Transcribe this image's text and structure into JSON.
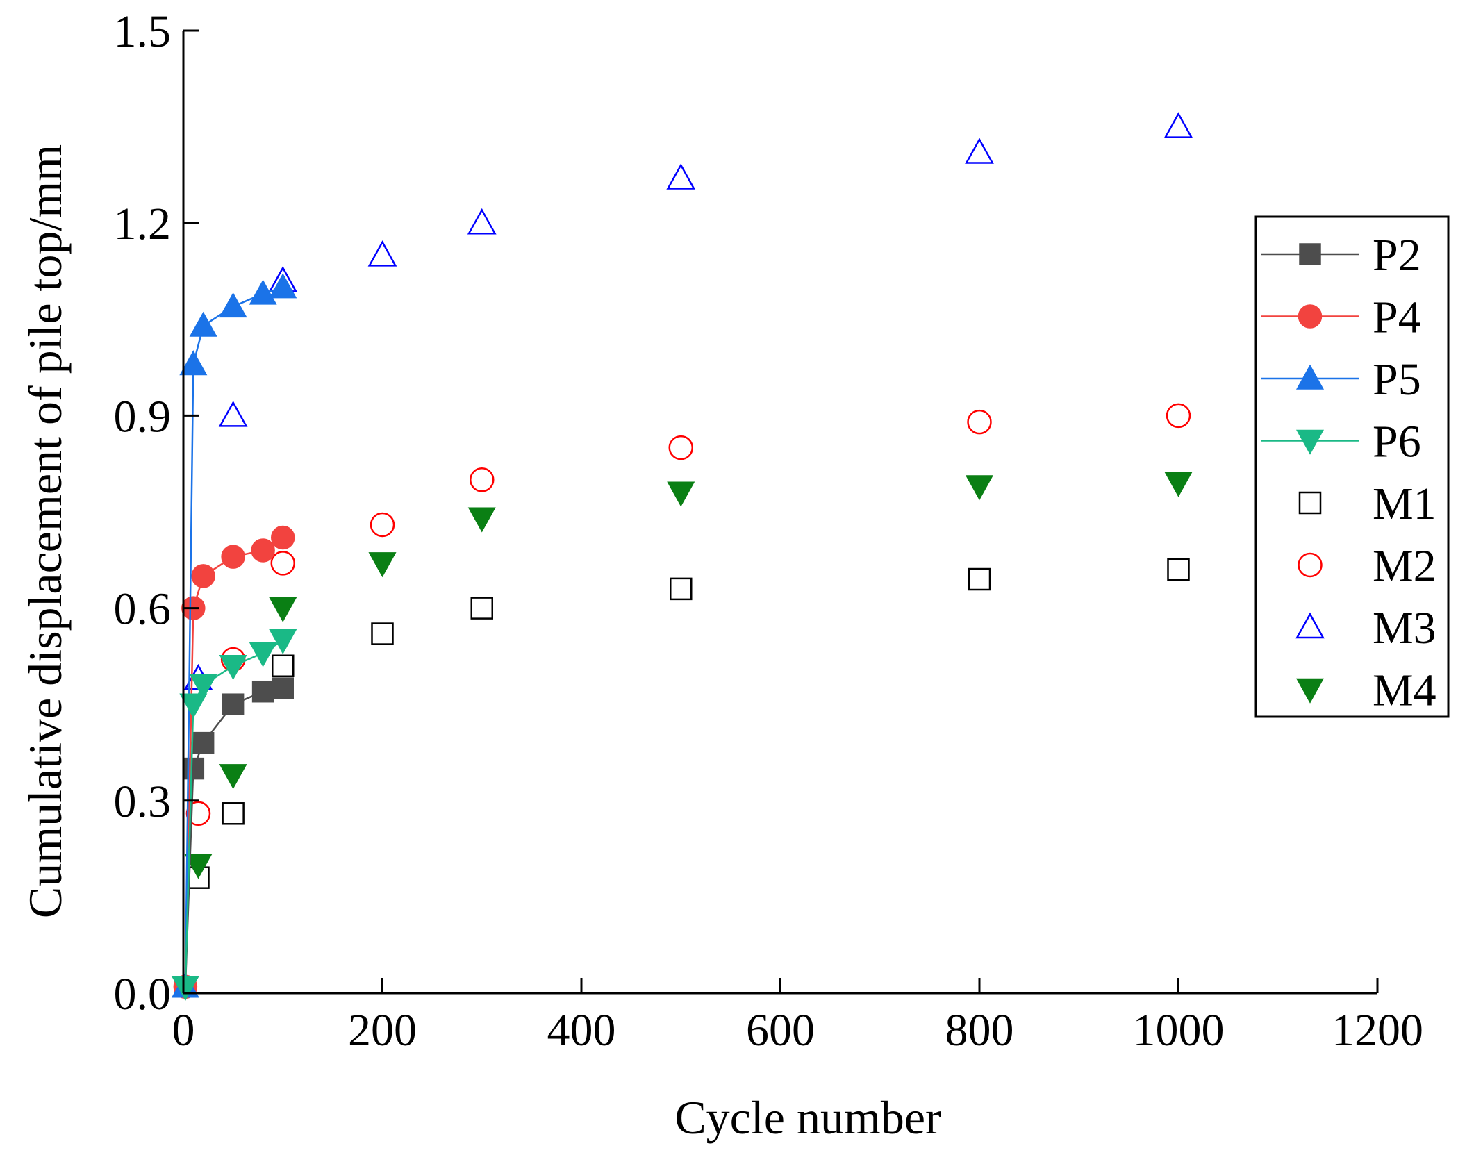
{
  "chart_data": {
    "type": "scatter",
    "title": "",
    "xlabel": "Cycle number",
    "ylabel": "Cumulative displacement of pile top/mm",
    "xlim": [
      0,
      1200
    ],
    "ylim": [
      0.0,
      1.5
    ],
    "xticks": [
      0,
      200,
      400,
      600,
      800,
      1000,
      1200
    ],
    "yticks": [
      0.0,
      0.3,
      0.6,
      0.9,
      1.2,
      1.5
    ],
    "xtick_labels": [
      "0",
      "200",
      "400",
      "600",
      "800",
      "1000",
      "1200"
    ],
    "ytick_labels": [
      "0.0",
      "0.3",
      "0.6",
      "0.9",
      "1.2",
      "1.5"
    ],
    "grid": false,
    "legend_position": "right",
    "series": [
      {
        "name": "P2",
        "marker": "square",
        "filled": true,
        "line": true,
        "color": "#4d4d4d",
        "line_color": "#4d4d4d",
        "x": [
          2,
          10,
          20,
          50,
          80,
          100
        ],
        "y": [
          0.01,
          0.35,
          0.39,
          0.45,
          0.47,
          0.475
        ]
      },
      {
        "name": "P4",
        "marker": "circle",
        "filled": true,
        "line": true,
        "color": "#f2433f",
        "line_color": "#f2433f",
        "x": [
          2,
          10,
          20,
          50,
          80,
          100
        ],
        "y": [
          0.01,
          0.6,
          0.65,
          0.68,
          0.69,
          0.71
        ]
      },
      {
        "name": "P5",
        "marker": "triangle-up",
        "filled": true,
        "line": true,
        "color": "#1b73e8",
        "line_color": "#1b73e8",
        "x": [
          2,
          10,
          20,
          50,
          80,
          100
        ],
        "y": [
          0.01,
          0.98,
          1.04,
          1.07,
          1.09,
          1.1
        ]
      },
      {
        "name": "P6",
        "marker": "triangle-down",
        "filled": true,
        "line": true,
        "color": "#1ab986",
        "line_color": "#1ab986",
        "x": [
          2,
          10,
          20,
          50,
          80,
          100
        ],
        "y": [
          0.01,
          0.45,
          0.48,
          0.51,
          0.53,
          0.55
        ]
      },
      {
        "name": "M1",
        "marker": "square",
        "filled": false,
        "line": false,
        "color": "#000000",
        "x": [
          15,
          50,
          100,
          200,
          300,
          500,
          800,
          1000
        ],
        "y": [
          0.18,
          0.28,
          0.51,
          0.56,
          0.6,
          0.63,
          0.645,
          0.66
        ]
      },
      {
        "name": "M2",
        "marker": "circle",
        "filled": false,
        "line": false,
        "color": "#ff0000",
        "x": [
          15,
          50,
          100,
          200,
          300,
          500,
          800,
          1000
        ],
        "y": [
          0.28,
          0.52,
          0.67,
          0.73,
          0.8,
          0.85,
          0.89,
          0.9
        ]
      },
      {
        "name": "M3",
        "marker": "triangle-up",
        "filled": false,
        "line": false,
        "color": "#0000ff",
        "x": [
          15,
          50,
          100,
          200,
          300,
          500,
          800,
          1000
        ],
        "y": [
          0.49,
          0.9,
          1.11,
          1.15,
          1.2,
          1.27,
          1.31,
          1.35
        ]
      },
      {
        "name": "M4",
        "marker": "triangle-down",
        "filled": true,
        "line": false,
        "color": "#0a7f14",
        "x": [
          2,
          15,
          50,
          100,
          200,
          300,
          500,
          800,
          1000
        ],
        "y": [
          0.01,
          0.2,
          0.34,
          0.6,
          0.67,
          0.74,
          0.78,
          0.79,
          0.795
        ]
      }
    ]
  }
}
